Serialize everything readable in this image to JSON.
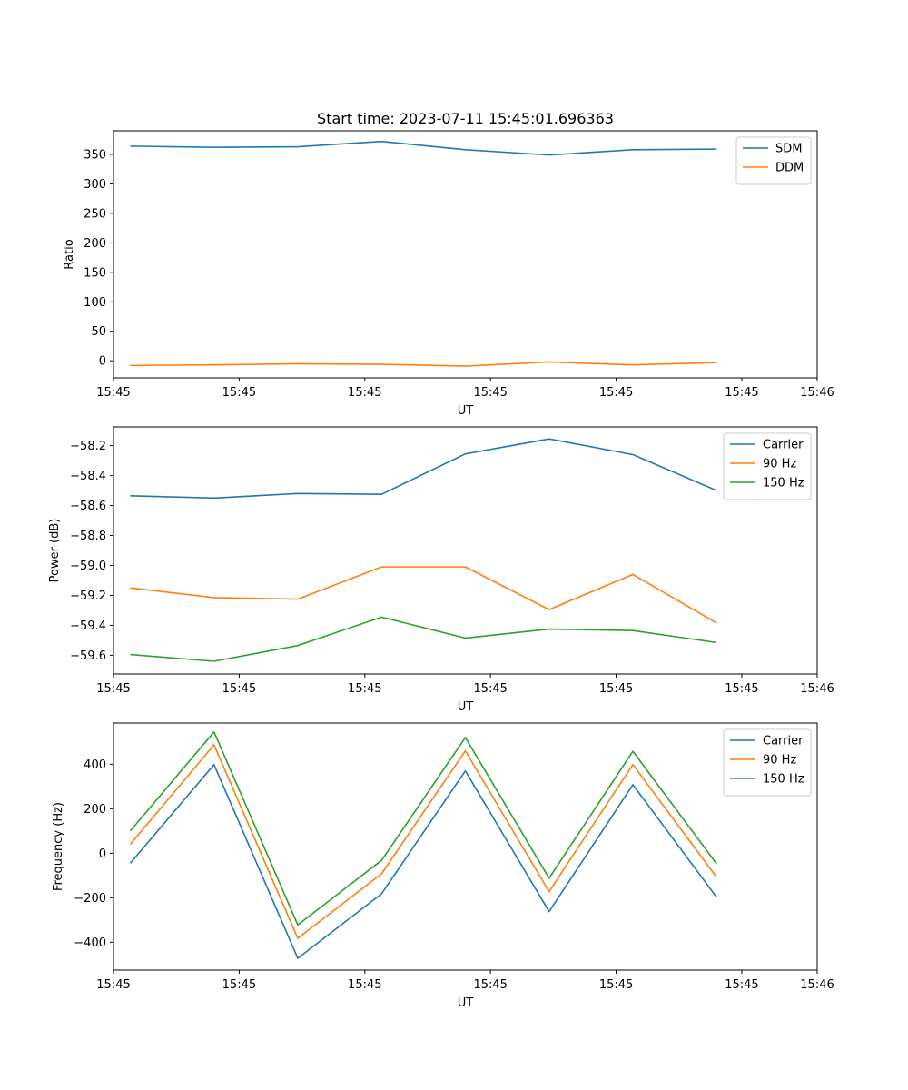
{
  "chart_data": [
    {
      "type": "line",
      "title": "Start time: 2023-07-11 15:45:01.696363",
      "xlabel": "UT",
      "ylabel": "Ratio",
      "x": [
        1,
        2,
        3,
        4,
        5,
        6,
        7,
        8
      ],
      "xlim": [
        0.8,
        9.2
      ],
      "x_ticks": [
        1,
        2.5,
        4,
        5.5,
        7,
        8.5,
        10
      ],
      "x_tick_labels": [
        "15:45",
        "15:45",
        "15:45",
        "15:45",
        "15:45",
        "15:45",
        "15:46"
      ],
      "x_tick_positions": [
        0.8,
        2.3,
        3.8,
        5.3,
        6.8,
        8.3,
        9.2
      ],
      "ylim": [
        -29,
        390
      ],
      "y_ticks": [
        0,
        50,
        100,
        150,
        200,
        250,
        300,
        350
      ],
      "y_tick_labels": [
        "0",
        "50",
        "100",
        "150",
        "200",
        "250",
        "300",
        "350"
      ],
      "legend_position": "top-right",
      "series": [
        {
          "name": "SDM",
          "color": "#1f77b4",
          "values": [
            364,
            362,
            363,
            372,
            358,
            349,
            358,
            359
          ]
        },
        {
          "name": "DDM",
          "color": "#ff7f0e",
          "values": [
            -8,
            -7,
            -5,
            -6,
            -9,
            -2,
            -7,
            -3
          ]
        }
      ]
    },
    {
      "type": "line",
      "title": "",
      "xlabel": "UT",
      "ylabel": "Power (dB)",
      "x": [
        1,
        2,
        3,
        4,
        5,
        6,
        7,
        8
      ],
      "xlim": [
        0.8,
        9.2
      ],
      "x_tick_labels": [
        "15:45",
        "15:45",
        "15:45",
        "15:45",
        "15:45",
        "15:45",
        "15:46"
      ],
      "x_tick_positions": [
        0.8,
        2.3,
        3.8,
        5.3,
        6.8,
        8.3,
        9.2
      ],
      "ylim": [
        -59.725,
        -58.075
      ],
      "y_ticks": [
        -59.6,
        -59.4,
        -59.2,
        -59.0,
        -58.8,
        -58.6,
        -58.4,
        -58.2
      ],
      "y_tick_labels": [
        "−59.6",
        "−59.4",
        "−59.2",
        "−59.0",
        "−58.8",
        "−58.6",
        "−58.4",
        "−58.2"
      ],
      "legend_position": "top-right",
      "series": [
        {
          "name": "Carrier",
          "color": "#1f77b4",
          "values": [
            -58.535,
            -58.55,
            -58.52,
            -58.525,
            -58.255,
            -58.155,
            -58.26,
            -58.5
          ]
        },
        {
          "name": "90 Hz",
          "color": "#ff7f0e",
          "values": [
            -59.15,
            -59.215,
            -59.225,
            -59.01,
            -59.01,
            -59.295,
            -59.06,
            -59.385
          ]
        },
        {
          "name": "150 Hz",
          "color": "#2ca02c",
          "values": [
            -59.595,
            -59.64,
            -59.535,
            -59.345,
            -59.485,
            -59.425,
            -59.435,
            -59.515
          ]
        }
      ]
    },
    {
      "type": "line",
      "title": "",
      "xlabel": "UT",
      "ylabel": "Frequency (Hz)",
      "x": [
        1,
        2,
        3,
        4,
        5,
        6,
        7,
        8
      ],
      "xlim": [
        0.8,
        9.2
      ],
      "x_tick_labels": [
        "15:45",
        "15:45",
        "15:45",
        "15:45",
        "15:45",
        "15:45",
        "15:46"
      ],
      "x_tick_positions": [
        0.8,
        2.3,
        3.8,
        5.3,
        6.8,
        8.3,
        9.2
      ],
      "ylim": [
        -525,
        585
      ],
      "y_ticks": [
        -400,
        -200,
        0,
        200,
        400
      ],
      "y_tick_labels": [
        "−400",
        "−200",
        "0",
        "200",
        "400"
      ],
      "legend_position": "top-right",
      "series": [
        {
          "name": "Carrier",
          "color": "#1f77b4",
          "values": [
            -45,
            398,
            -472,
            -182,
            370,
            -262,
            308,
            -198
          ]
        },
        {
          "name": "90 Hz",
          "color": "#ff7f0e",
          "values": [
            40,
            487,
            -382,
            -92,
            460,
            -172,
            398,
            -108
          ]
        },
        {
          "name": "150 Hz",
          "color": "#2ca02c",
          "values": [
            100,
            545,
            -322,
            -32,
            520,
            -112,
            458,
            -48
          ]
        }
      ]
    }
  ]
}
